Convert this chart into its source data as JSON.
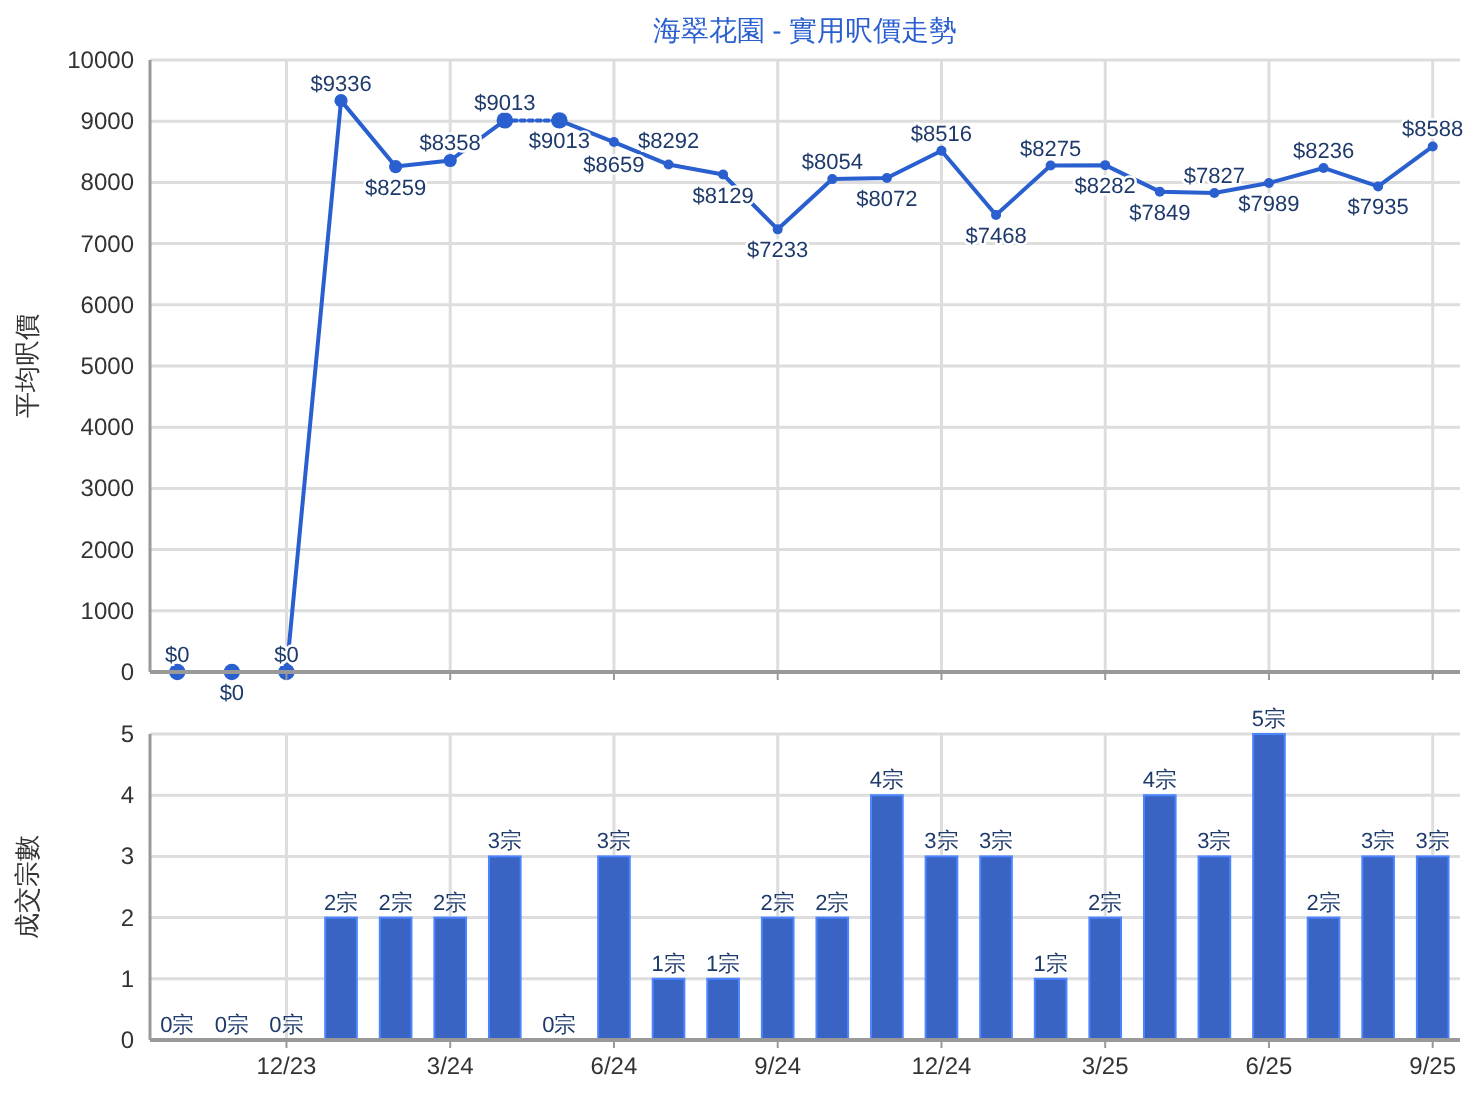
{
  "chart_data": [
    {
      "type": "line",
      "title": "海翠花園 - 實用呎價走勢",
      "ylabel": "平均呎價",
      "categories": [
        null,
        null,
        null,
        null,
        null,
        null,
        null,
        null,
        null,
        null,
        null,
        null,
        null,
        null,
        null,
        null,
        null,
        null,
        null,
        null,
        null,
        null,
        null,
        null
      ],
      "series": [
        {
          "color": "#2a5fcf",
          "line_style": "dotted",
          "values": [
            0,
            0,
            0,
            null,
            null,
            null,
            9013,
            9013,
            null,
            null,
            null,
            null,
            null,
            null,
            null,
            null,
            null,
            null,
            null,
            null,
            null,
            null,
            null,
            null
          ],
          "value_labels": [
            "$0",
            "$0",
            null,
            null,
            null,
            null,
            null,
            null,
            null,
            null,
            null,
            null,
            null,
            null,
            null,
            null,
            null,
            null,
            null,
            null,
            null,
            null,
            null,
            null
          ]
        },
        {
          "color": "#2a5fcf",
          "line_style": "solid",
          "values": [
            null,
            null,
            0,
            9336,
            8259,
            8358,
            9013,
            null,
            null,
            null,
            null,
            null,
            null,
            null,
            null,
            null,
            null,
            null,
            null,
            null,
            null,
            null,
            null,
            null
          ],
          "value_labels": [
            null,
            null,
            "$0",
            "$9336",
            "$8259",
            "$8358",
            "$9013",
            null,
            null,
            null,
            null,
            null,
            null,
            null,
            null,
            null,
            null,
            null,
            null,
            null,
            null,
            null,
            null,
            null
          ]
        },
        {
          "color": "#2a5fcf",
          "line_style": "solid",
          "values": [
            null,
            null,
            null,
            null,
            null,
            null,
            null,
            9013,
            8659,
            8292,
            8129,
            7233,
            8054,
            8072,
            8516,
            7468,
            8275,
            8282,
            7849,
            7827,
            7989,
            8236,
            7935,
            8588
          ],
          "value_labels": [
            null,
            null,
            null,
            null,
            null,
            null,
            null,
            "$9013",
            "$8659",
            "$8292",
            "$8129",
            "$7233",
            "$8054",
            "$8072",
            "$8516",
            "$7468",
            "$8275",
            "$8282",
            "$7849",
            "$7827",
            "$7989",
            "$8236",
            "$7935",
            "$8588"
          ]
        }
      ],
      "marker": "circle",
      "ylim": [
        0,
        10000
      ],
      "yticks": [
        0,
        1000,
        2000,
        3000,
        4000,
        5000,
        6000,
        7000,
        8000,
        9000,
        10000
      ],
      "grid": true,
      "tick_labels": "y"
    },
    {
      "type": "bar",
      "ylabel": "成交宗數",
      "categories": [
        null,
        null,
        "12/23",
        null,
        null,
        "3/24",
        null,
        null,
        "6/24",
        null,
        null,
        "9/24",
        null,
        null,
        "12/24",
        null,
        null,
        "3/25",
        null,
        null,
        "6/25",
        null,
        null,
        "9/25"
      ],
      "values": [
        0,
        0,
        0,
        2,
        2,
        2,
        3,
        0,
        3,
        1,
        1,
        2,
        2,
        4,
        3,
        3,
        1,
        2,
        4,
        3,
        5,
        2,
        3,
        3
      ],
      "value_labels": [
        "0宗",
        "0宗",
        "0宗",
        "2宗",
        "2宗",
        "2宗",
        "3宗",
        "0宗",
        "3宗",
        "1宗",
        "1宗",
        "2宗",
        "2宗",
        "4宗",
        "3宗",
        "3宗",
        "1宗",
        "2宗",
        "4宗",
        "3宗",
        "5宗",
        "2宗",
        "3宗",
        "3宗"
      ],
      "color": "#3a64c4",
      "ylim": [
        0,
        5
      ],
      "yticks": [
        0,
        1,
        2,
        3,
        4,
        5
      ],
      "grid": true
    }
  ]
}
